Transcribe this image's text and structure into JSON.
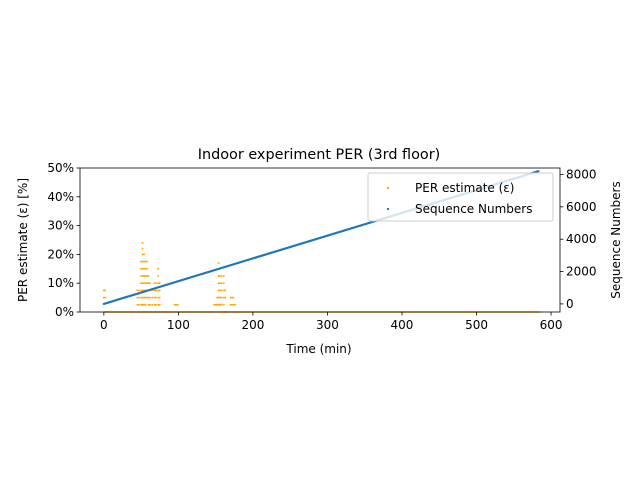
{
  "chart_data": {
    "type": "scatter",
    "title": "Indoor experiment PER (3rd floor)",
    "xlabel": "Time (min)",
    "ylabel_left": "PER estimate (ε) [%]",
    "ylabel_right": "Sequence Numbers",
    "xlim": [
      -32,
      612
    ],
    "xticks": [
      "0",
      "100",
      "200",
      "300",
      "400",
      "500",
      "600"
    ],
    "ylim_left": [
      0,
      50
    ],
    "yticks_left": [
      "0%",
      "10%",
      "20%",
      "30%",
      "40%",
      "50%"
    ],
    "ylim_right": [
      -500,
      8400
    ],
    "yticks_right": [
      "0",
      "2000",
      "4000",
      "6000",
      "8000"
    ],
    "legend_position": "upper right",
    "grid": false,
    "series": [
      {
        "name": "PER estimate (ε)",
        "axis": "left",
        "color": "#ffa500",
        "marker_size": 1.6,
        "points": [
          [
            0,
            7.5
          ],
          [
            0,
            5
          ],
          [
            2,
            7.5
          ],
          [
            2,
            5
          ],
          [
            3,
            0
          ],
          [
            45,
            2.5
          ],
          [
            45,
            5
          ],
          [
            45,
            7.5
          ],
          [
            47,
            2.5
          ],
          [
            47,
            5
          ],
          [
            47,
            7.5
          ],
          [
            50,
            2.5
          ],
          [
            50,
            5
          ],
          [
            50,
            7.5
          ],
          [
            50,
            10
          ],
          [
            50,
            12.5
          ],
          [
            50,
            15
          ],
          [
            50,
            17.5
          ],
          [
            52,
            2.5
          ],
          [
            52,
            5
          ],
          [
            52,
            7.5
          ],
          [
            52,
            10
          ],
          [
            52,
            12.5
          ],
          [
            52,
            15
          ],
          [
            52,
            17.5
          ],
          [
            52,
            20
          ],
          [
            52,
            22
          ],
          [
            52,
            24
          ],
          [
            54,
            2.5
          ],
          [
            54,
            5
          ],
          [
            54,
            7.5
          ],
          [
            54,
            10
          ],
          [
            54,
            12.5
          ],
          [
            54,
            15
          ],
          [
            54,
            17.5
          ],
          [
            54,
            20
          ],
          [
            56,
            2.5
          ],
          [
            56,
            5
          ],
          [
            56,
            7.5
          ],
          [
            56,
            10
          ],
          [
            56,
            12.5
          ],
          [
            56,
            15
          ],
          [
            56,
            17.5
          ],
          [
            58,
            5
          ],
          [
            58,
            7.5
          ],
          [
            58,
            10
          ],
          [
            58,
            12.5
          ],
          [
            58,
            15
          ],
          [
            58,
            17.5
          ],
          [
            60,
            2.5
          ],
          [
            60,
            5
          ],
          [
            60,
            7.5
          ],
          [
            60,
            10
          ],
          [
            60,
            12.5
          ],
          [
            62,
            2.5
          ],
          [
            62,
            5
          ],
          [
            62,
            7.5
          ],
          [
            62,
            10
          ],
          [
            65,
            2.5
          ],
          [
            65,
            5
          ],
          [
            65,
            7.5
          ],
          [
            68,
            2.5
          ],
          [
            68,
            5
          ],
          [
            68,
            7.5
          ],
          [
            68,
            10
          ],
          [
            70,
            2.5
          ],
          [
            70,
            5
          ],
          [
            70,
            7.5
          ],
          [
            70,
            10
          ],
          [
            73,
            2.5
          ],
          [
            73,
            5
          ],
          [
            73,
            7.5
          ],
          [
            73,
            10
          ],
          [
            73,
            12.5
          ],
          [
            73,
            15
          ],
          [
            75,
            2.5
          ],
          [
            75,
            5
          ],
          [
            75,
            7.5
          ],
          [
            75,
            10
          ],
          [
            78,
            0
          ],
          [
            95,
            2.5
          ],
          [
            97,
            2.5
          ],
          [
            99,
            2.5
          ],
          [
            148,
            2.5
          ],
          [
            150,
            2.5
          ],
          [
            152,
            2.5
          ],
          [
            152,
            5
          ],
          [
            154,
            2.5
          ],
          [
            154,
            5
          ],
          [
            154,
            7.5
          ],
          [
            154,
            10
          ],
          [
            154,
            12.5
          ],
          [
            154,
            15
          ],
          [
            154,
            17
          ],
          [
            156,
            2.5
          ],
          [
            156,
            5
          ],
          [
            156,
            7.5
          ],
          [
            156,
            10
          ],
          [
            156,
            12.5
          ],
          [
            158,
            2.5
          ],
          [
            158,
            5
          ],
          [
            158,
            7.5
          ],
          [
            158,
            10
          ],
          [
            158,
            12.5
          ],
          [
            161,
            2.5
          ],
          [
            161,
            5
          ],
          [
            161,
            7.5
          ],
          [
            161,
            10
          ],
          [
            161,
            12.5
          ],
          [
            163,
            0
          ],
          [
            163,
            5
          ],
          [
            163,
            7.5
          ],
          [
            170,
            2.5
          ],
          [
            170,
            5
          ],
          [
            172,
            2.5
          ],
          [
            172,
            5
          ],
          [
            174,
            2.5
          ],
          [
            174,
            5
          ],
          [
            176,
            2.5
          ]
        ],
        "baseline_segment": [
          0,
          585,
          0
        ]
      },
      {
        "name": "Sequence Numbers",
        "axis": "right",
        "color": "#1f77b4",
        "marker_size": 1.6,
        "segment": [
          [
            0,
            0
          ],
          [
            583,
            8200
          ]
        ]
      }
    ]
  }
}
